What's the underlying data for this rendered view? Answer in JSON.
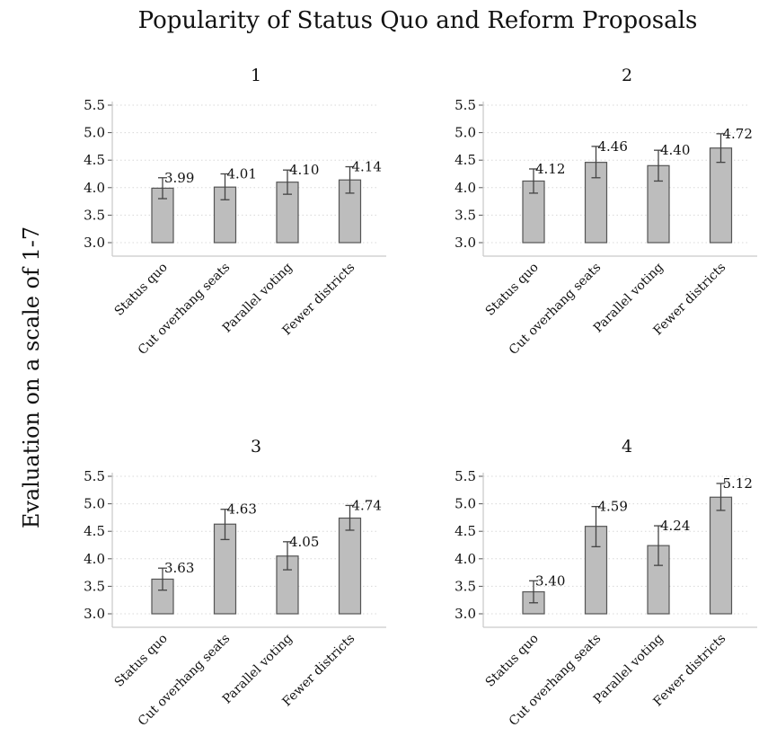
{
  "chart_data": {
    "type": "bar",
    "title": "Popularity of Status Quo and Reform Proposals",
    "ylabel": "Evaluation on a scale of 1-7",
    "categories": [
      "Status quo",
      "Cut overhang seats",
      "Parallel voting",
      "Fewer districts"
    ],
    "ylim": [
      3.0,
      5.5
    ],
    "yticks": [
      "3.0",
      "3.5",
      "4.0",
      "4.5",
      "5.0",
      "5.5"
    ],
    "grid": true,
    "error_bars": true,
    "bar_color": "#bdbdbd",
    "panels": [
      {
        "title": "1",
        "values": [
          3.99,
          4.01,
          4.1,
          4.14
        ],
        "labels": [
          "3.99",
          "4.01",
          "4.10",
          "4.14"
        ],
        "ci_low": [
          3.8,
          3.78,
          3.88,
          3.9
        ],
        "ci_high": [
          4.18,
          4.25,
          4.32,
          4.38
        ]
      },
      {
        "title": "2",
        "values": [
          4.12,
          4.46,
          4.4,
          4.72
        ],
        "labels": [
          "4.12",
          "4.46",
          "4.40",
          "4.72"
        ],
        "ci_low": [
          3.9,
          4.18,
          4.12,
          4.46
        ],
        "ci_high": [
          4.34,
          4.75,
          4.68,
          4.98
        ]
      },
      {
        "title": "3",
        "values": [
          3.63,
          4.63,
          4.05,
          4.74
        ],
        "labels": [
          "3.63",
          "4.63",
          "4.05",
          "4.74"
        ],
        "ci_low": [
          3.43,
          4.35,
          3.8,
          4.52
        ],
        "ci_high": [
          3.83,
          4.9,
          4.31,
          4.97
        ]
      },
      {
        "title": "4",
        "values": [
          3.4,
          4.59,
          4.24,
          5.12
        ],
        "labels": [
          "3.40",
          "4.59",
          "4.24",
          "5.12"
        ],
        "ci_low": [
          3.2,
          4.22,
          3.88,
          4.88
        ],
        "ci_high": [
          3.6,
          4.95,
          4.6,
          5.37
        ]
      }
    ]
  }
}
